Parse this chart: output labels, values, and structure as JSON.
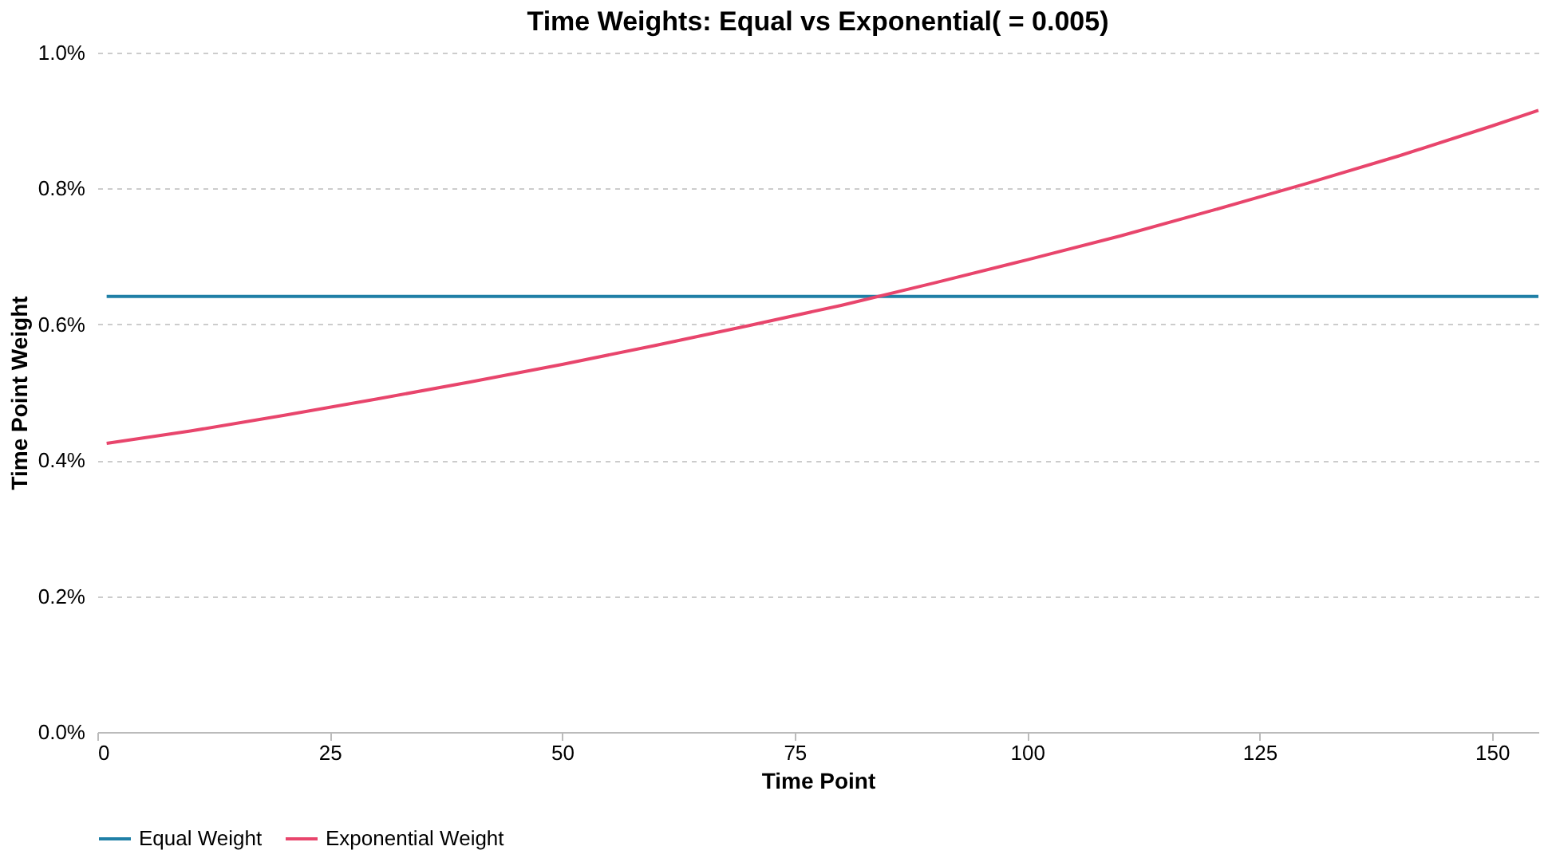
{
  "chart_data": {
    "type": "line",
    "title": "Time Weights: Equal vs Exponential( = 0.005)",
    "xlabel": "Time Point",
    "ylabel": "Time Point Weight",
    "xlim": [
      0,
      155
    ],
    "xticks": [
      0,
      25,
      50,
      75,
      100,
      125,
      150
    ],
    "ylim": [
      0,
      1.0
    ],
    "yticks": [
      {
        "value": 0,
        "label": "0.0%"
      },
      {
        "value": 0.2,
        "label": "0.2%"
      },
      {
        "value": 0.4,
        "label": "0.4%"
      },
      {
        "value": 0.6,
        "label": "0.6%"
      },
      {
        "value": 0.8,
        "label": "0.8%"
      },
      {
        "value": 1.0,
        "label": "1.0%"
      }
    ],
    "grid": "y",
    "legend": "bottom",
    "marker": "none",
    "line_style": "solid",
    "series": [
      {
        "name": "Equal Weight",
        "color": "#1f7fa6",
        "x": [
          1,
          155
        ],
        "values": [
          0.641,
          0.641
        ]
      },
      {
        "name": "Exponential Weight",
        "color": "#e8456c",
        "x": [
          1,
          10,
          20,
          30,
          40,
          50,
          60,
          70,
          80,
          90,
          100,
          110,
          120,
          130,
          140,
          150,
          155
        ],
        "values": [
          0.425,
          0.443,
          0.466,
          0.49,
          0.515,
          0.541,
          0.569,
          0.598,
          0.628,
          0.661,
          0.695,
          0.73,
          0.768,
          0.807,
          0.848,
          0.892,
          0.915
        ]
      }
    ]
  }
}
